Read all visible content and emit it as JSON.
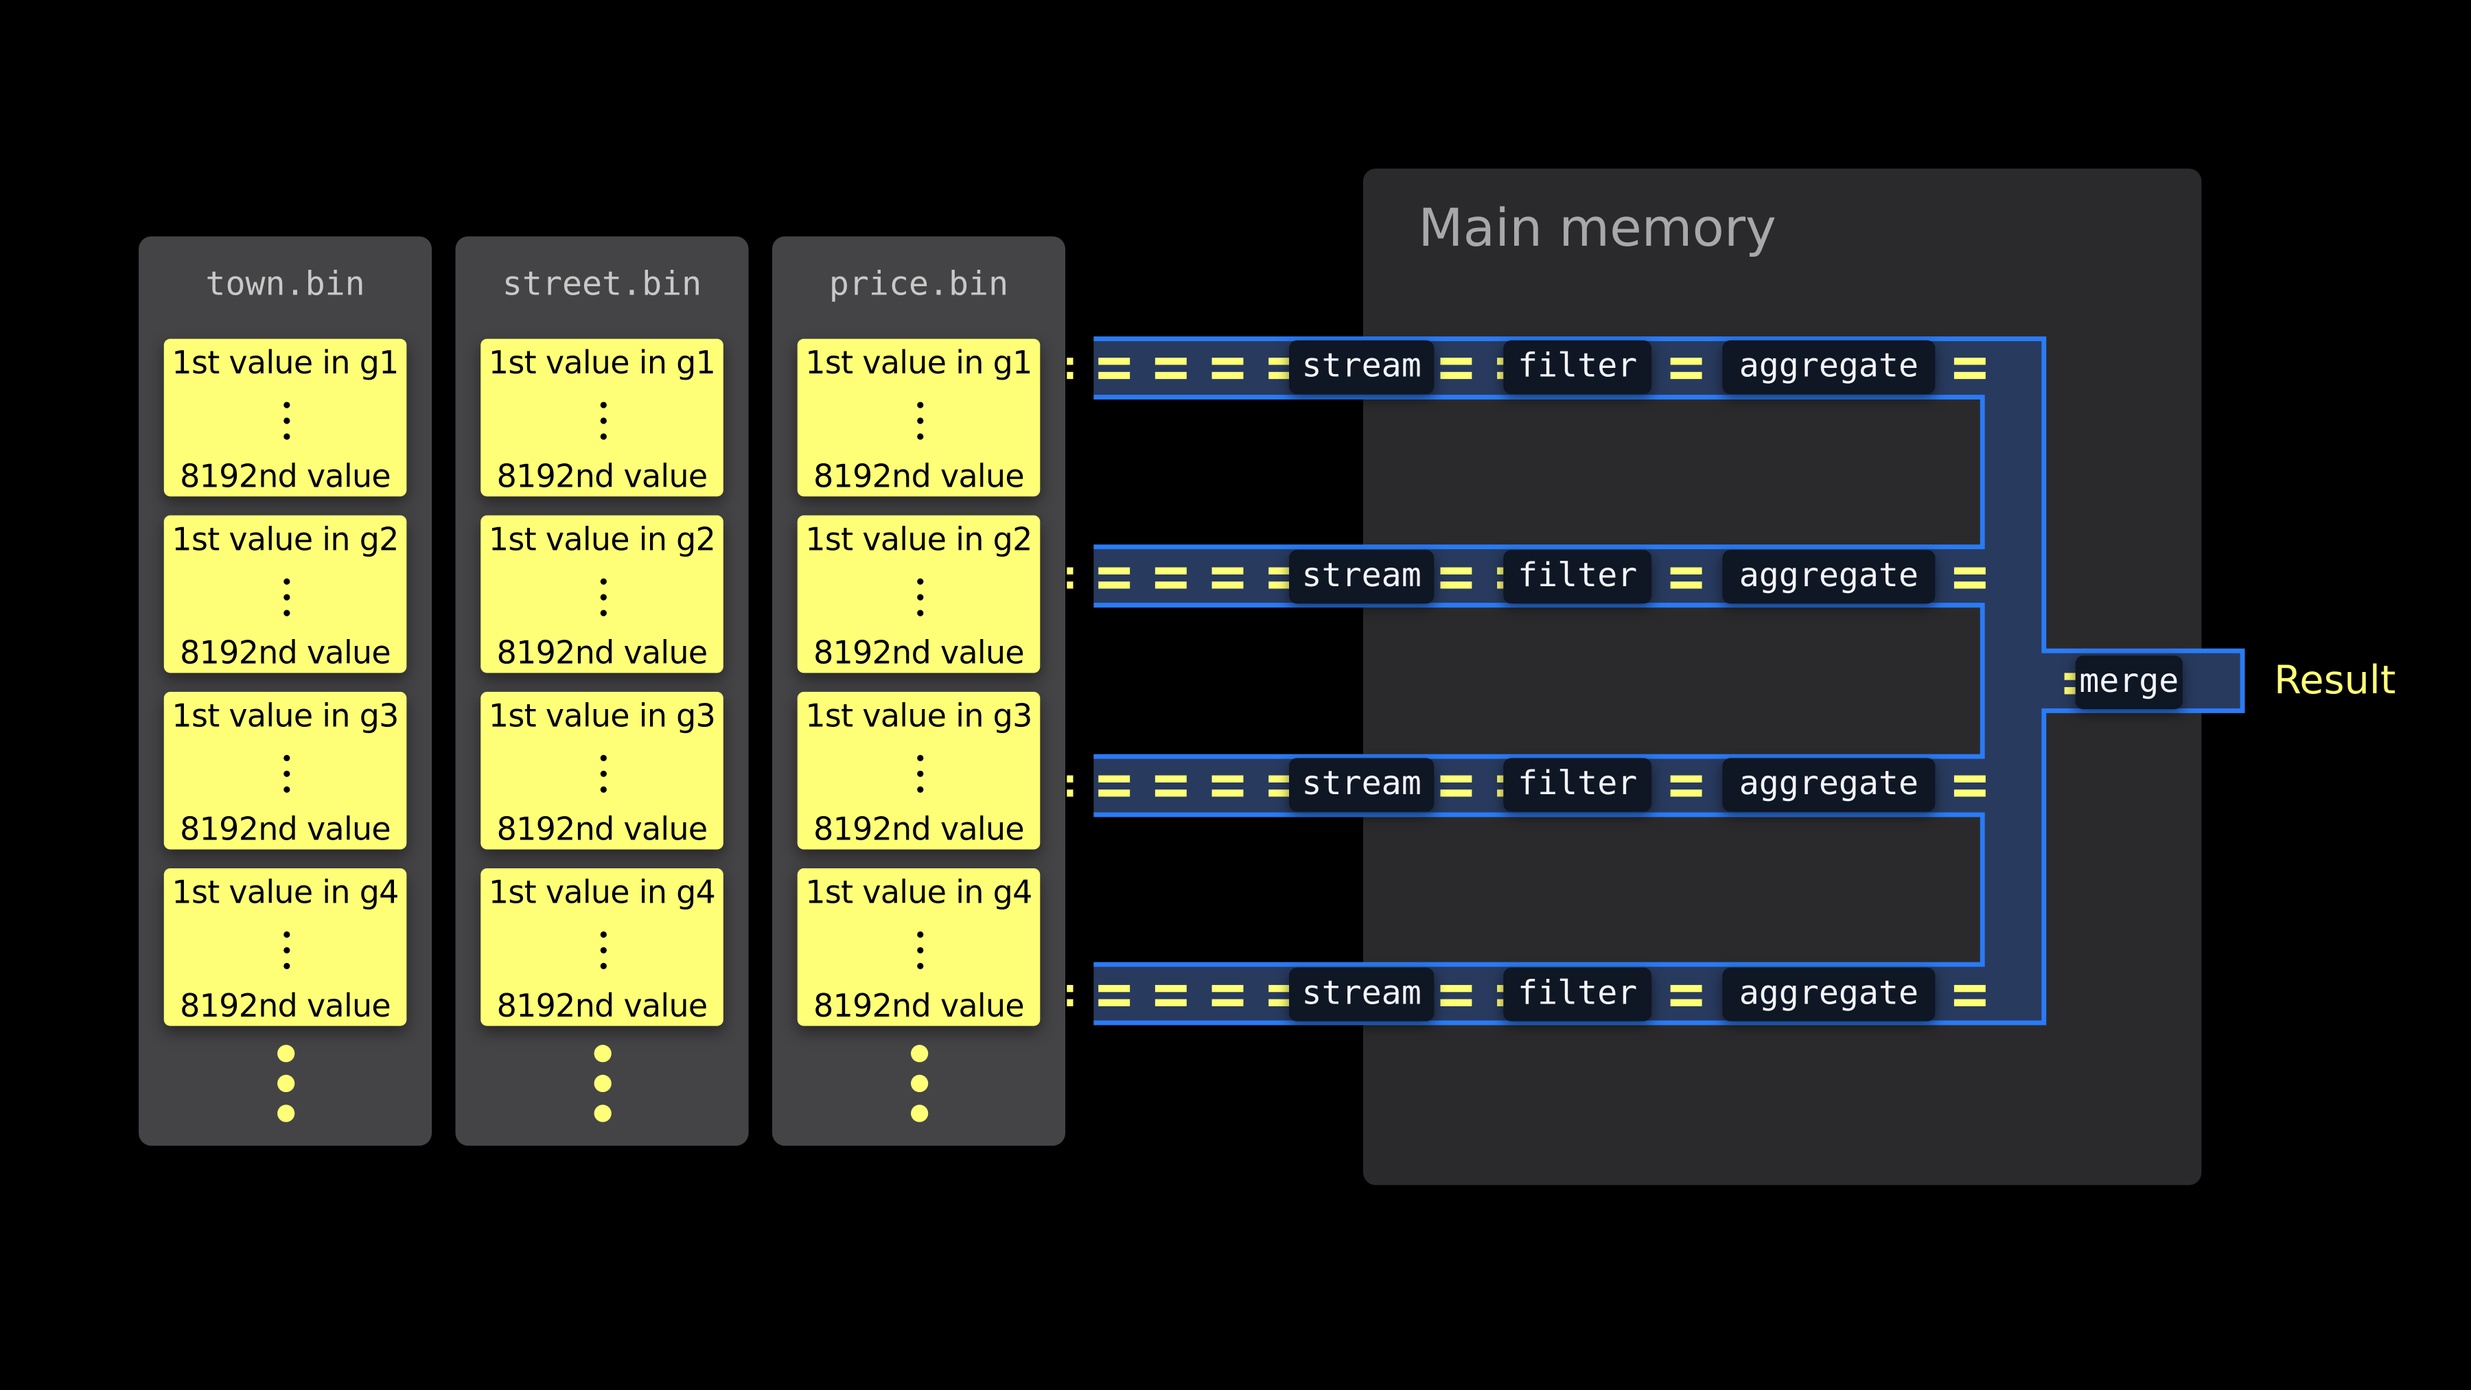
{
  "files": [
    {
      "name": "town.bin",
      "groups": [
        {
          "first": "1st value in g1",
          "last": "8192nd value"
        },
        {
          "first": "1st value in g2",
          "last": "8192nd value"
        },
        {
          "first": "1st value in g3",
          "last": "8192nd value"
        },
        {
          "first": "1st value in g4",
          "last": "8192nd value"
        }
      ]
    },
    {
      "name": "street.bin",
      "groups": [
        {
          "first": "1st value in g1",
          "last": "8192nd value"
        },
        {
          "first": "1st value in g2",
          "last": "8192nd value"
        },
        {
          "first": "1st value in g3",
          "last": "8192nd value"
        },
        {
          "first": "1st value in g4",
          "last": "8192nd value"
        }
      ]
    },
    {
      "name": "price.bin",
      "groups": [
        {
          "first": "1st value in g1",
          "last": "8192nd value"
        },
        {
          "first": "1st value in g2",
          "last": "8192nd value"
        },
        {
          "first": "1st value in g3",
          "last": "8192nd value"
        },
        {
          "first": "1st value in g4",
          "last": "8192nd value"
        }
      ]
    }
  ],
  "memory": {
    "title": "Main memory"
  },
  "pipelines": [
    {
      "stages": [
        "stream",
        "filter",
        "aggregate"
      ]
    },
    {
      "stages": [
        "stream",
        "filter",
        "aggregate"
      ]
    },
    {
      "stages": [
        "stream",
        "filter",
        "aggregate"
      ]
    },
    {
      "stages": [
        "stream",
        "filter",
        "aggregate"
      ]
    }
  ],
  "merge": {
    "label": "merge"
  },
  "result": {
    "label": "Result"
  },
  "colors": {
    "block": "#ffff77",
    "pipe_fill": "#283a5e",
    "pipe_border": "#2a7bf5",
    "column": "#444446",
    "memory": "#2a2a2d"
  }
}
